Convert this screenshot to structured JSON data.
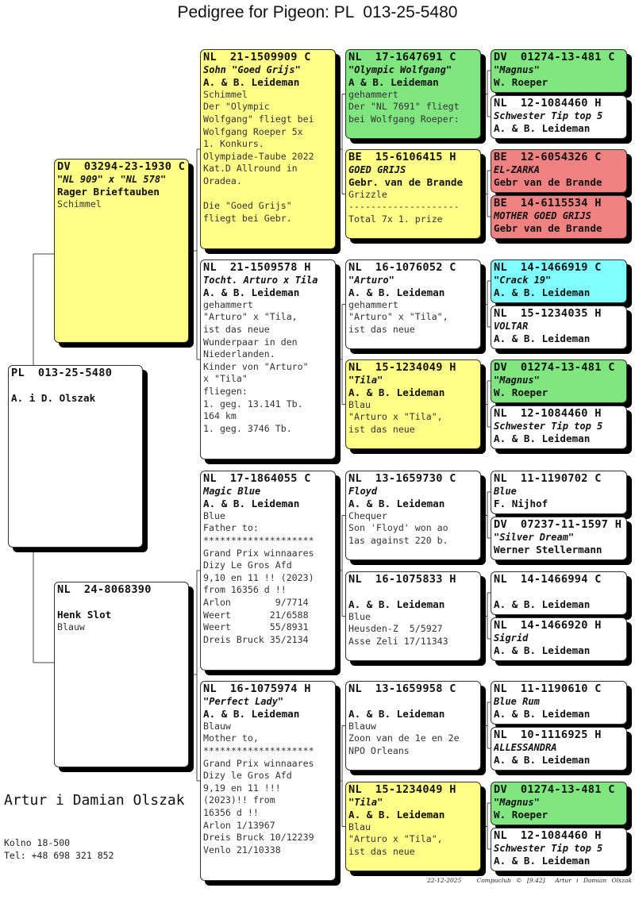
{
  "title": "Pedigree for Pigeon: PL  013-25-5480",
  "colors": {
    "white": "#ffffff",
    "yellow": "#ffff88",
    "green": "#80e680",
    "red": "#f28282",
    "cyan": "#80ffff"
  },
  "subject": {
    "ring": "PL  013-25-5480",
    "name": "",
    "owner": "A. i D. Olszak",
    "bg": "#ffffff",
    "lines": []
  },
  "sire": {
    "ring": "DV  03294-23-1930 C",
    "name": "\"NL 909\" x \"NL 578\"",
    "owner": "Rager Brieftauben",
    "bg": "#ffff88",
    "lines": [
      "Schimmel"
    ]
  },
  "dam": {
    "ring": "NL  24-8068390",
    "name": "",
    "owner": "Henk Slot",
    "bg": "#ffffff",
    "lines": [
      "Blauw"
    ]
  },
  "gen3": [
    {
      "ring": "NL  21-1509909 C",
      "name": "Sohn \"Goed Grijs\"",
      "owner": "A. & B. Leideman",
      "bg": "#ffff88",
      "lines": [
        "Schimmel",
        "Der \"Olympic",
        "Wolfgang\" fliegt bei",
        "Wolfgang Roeper 5x",
        "1. Konkurs.",
        "Olympiade-Taube 2022",
        "Kat.D Allround in",
        "Oradea.",
        "",
        "Die \"Goed Grijs\"",
        "fliegt bei Gebr."
      ]
    },
    {
      "ring": "NL  21-1509578 H",
      "name": "Tocht. Arturo x Tila",
      "owner": "A. & B. Leideman",
      "bg": "#ffffff",
      "lines": [
        "gehammert",
        "\"Arturo\" x \"Tila,",
        "ist das neue",
        "Wunderpaar in den",
        "Niederlanden.",
        "Kinder von \"Arturo\"",
        "x \"Tila\"",
        "fliegen:",
        "1. geg. 13.141 Tb.",
        "164 km",
        "1. geg. 3746 Tb."
      ]
    },
    {
      "ring": "NL  17-1864055 C",
      "name": "Magic Blue",
      "owner": "A. & B. Leideman",
      "bg": "#ffffff",
      "lines": [
        "Blue",
        "Father to:",
        "********************",
        "Grand Prix winnaares",
        "Dizy Le Gros Afd",
        "9,10 en 11 !! (2023)",
        "from 16356 d !!",
        "Arlon        9/7714",
        "Weert       21/6588",
        "Weert       55/8931",
        "Dreis Bruck 35/2134"
      ]
    },
    {
      "ring": "NL  16-1075974 H",
      "name": "\"Perfect Lady\"",
      "owner": "A. & B. Leideman",
      "bg": "#ffffff",
      "lines": [
        "Blauw",
        "Mother to,",
        "********************",
        "Grand Prix winnaares",
        "Dizy le Gros Afd",
        "9,19 en 11 !!!",
        "(2023)!! from",
        "16356 d !!",
        "Arlon 1/13967",
        "Dreis Bruck 10/12239",
        "Venlo 21/10338"
      ]
    }
  ],
  "gen4": [
    {
      "ring": "NL  17-1647691 C",
      "name": "\"Olympic Wolfgang\"",
      "owner": "A & B. Leideman",
      "bg": "#80e680",
      "lines": [
        "gehammert",
        "Der \"NL 7691\" fliegt",
        "bei Wolfgang Roeper:"
      ]
    },
    {
      "ring": "BE  15-6106415 H",
      "name": "GOED GRIJS",
      "owner": "Gebr. van de Brande",
      "bg": "#ffff88",
      "lines": [
        "Grizzle",
        "--------------------",
        "Total 7x 1. prize"
      ]
    },
    {
      "ring": "NL  16-1076052 C",
      "name": "\"Arturo\"",
      "owner": "A. & B. Leideman",
      "bg": "#ffffff",
      "lines": [
        "gehammert",
        "\"Arturo\" x \"Tila\",",
        "ist das neue"
      ]
    },
    {
      "ring": "NL  15-1234049 H",
      "name": "\"Tila\"",
      "owner": "A. & B. Leideman",
      "bg": "#ffff88",
      "lines": [
        "Blau",
        "\"Arturo x \"Tila\",",
        "ist das neue"
      ]
    },
    {
      "ring": "NL  13-1659730 C",
      "name": "Floyd",
      "owner": "A. & B. Leideman",
      "bg": "#ffffff",
      "lines": [
        "Chequer",
        "Son 'Floyd' won ao",
        "1as against 220 b."
      ]
    },
    {
      "ring": "NL  16-1075833 H",
      "name": "",
      "owner": "A. & B. Leideman",
      "bg": "#ffffff",
      "lines": [
        "Blue",
        "Heusden-Z  5/5927",
        "Asse Zeli 17/11343"
      ]
    },
    {
      "ring": "NL  13-1659958 C",
      "name": "",
      "owner": "A. & B. Leideman",
      "bg": "#ffffff",
      "lines": [
        "Blauw",
        "Zoon van de 1e en 2e",
        "NPO Orleans"
      ]
    },
    {
      "ring": "NL  15-1234049 H",
      "name": "\"Tila\"",
      "owner": "A. & B. Leideman",
      "bg": "#ffff88",
      "lines": [
        "Blau",
        "\"Arturo x \"Tila\",",
        "ist das neue"
      ]
    }
  ],
  "gen5": [
    {
      "ring": "DV  01274-13-481 C",
      "name": "\"Magnus\"",
      "owner": "W. Roeper",
      "bg": "#80e680"
    },
    {
      "ring": "NL  12-1084460 H",
      "name": "Schwester Tip top 5",
      "owner": "A. & B. Leideman",
      "bg": "#ffffff"
    },
    {
      "ring": "BE  12-6054326 C",
      "name": "EL-ZARKA",
      "owner": "Gebr van de Brande",
      "bg": "#f28282"
    },
    {
      "ring": "BE  14-6115534 H",
      "name": "MOTHER GOED GRIJS",
      "owner": "Gebr van de Brande",
      "bg": "#f28282"
    },
    {
      "ring": "NL  14-1466919 C",
      "name": "\"Crack 19\"",
      "owner": "A. & B. Leideman",
      "bg": "#80ffff"
    },
    {
      "ring": "NL  15-1234035 H",
      "name": "VOLTAR",
      "owner": "A. & B. Leideman",
      "bg": "#ffffff"
    },
    {
      "ring": "DV  01274-13-481 C",
      "name": "\"Magnus\"",
      "owner": "W. Roeper",
      "bg": "#80e680"
    },
    {
      "ring": "NL  12-1084460 H",
      "name": "Schwester Tip top 5",
      "owner": "A. & B. Leideman",
      "bg": "#ffffff"
    },
    {
      "ring": "NL  11-1190702 C",
      "name": "Blue",
      "owner": "F. Nijhof",
      "bg": "#ffffff"
    },
    {
      "ring": "DV  07237-11-1597 H",
      "name": "\"Silver Dream\"",
      "owner": "Werner Stellermann",
      "bg": "#ffffff"
    },
    {
      "ring": "NL  14-1466994 C",
      "name": "",
      "owner": "A. & B. Leideman",
      "bg": "#ffffff"
    },
    {
      "ring": "NL  14-1466920 H",
      "name": "Sigrid",
      "owner": "A. & B. Leideman",
      "bg": "#ffffff"
    },
    {
      "ring": "NL  11-1190610 C",
      "name": "Blue Rum",
      "owner": "A. & B. Leideman",
      "bg": "#ffffff"
    },
    {
      "ring": "NL  10-1116925 H",
      "name": "ALLESSANDRA",
      "owner": "A. & B. Leideman",
      "bg": "#ffffff"
    },
    {
      "ring": "DV  01274-13-481 C",
      "name": "\"Magnus\"",
      "owner": "W. Roeper",
      "bg": "#80e680"
    },
    {
      "ring": "NL  12-1084460 H",
      "name": "Schwester Tip top 5",
      "owner": "A. & B. Leideman",
      "bg": "#ffffff"
    }
  ],
  "breeder": {
    "name": "Artur i Damian Olszak",
    "address": "Kolno 18-500",
    "phone": "Tel: +48 698 321 852"
  },
  "footer": {
    "date": "22-12-2025",
    "software": "Compuclub © [9.42]",
    "owner": "Artur i Damian Olszak"
  }
}
